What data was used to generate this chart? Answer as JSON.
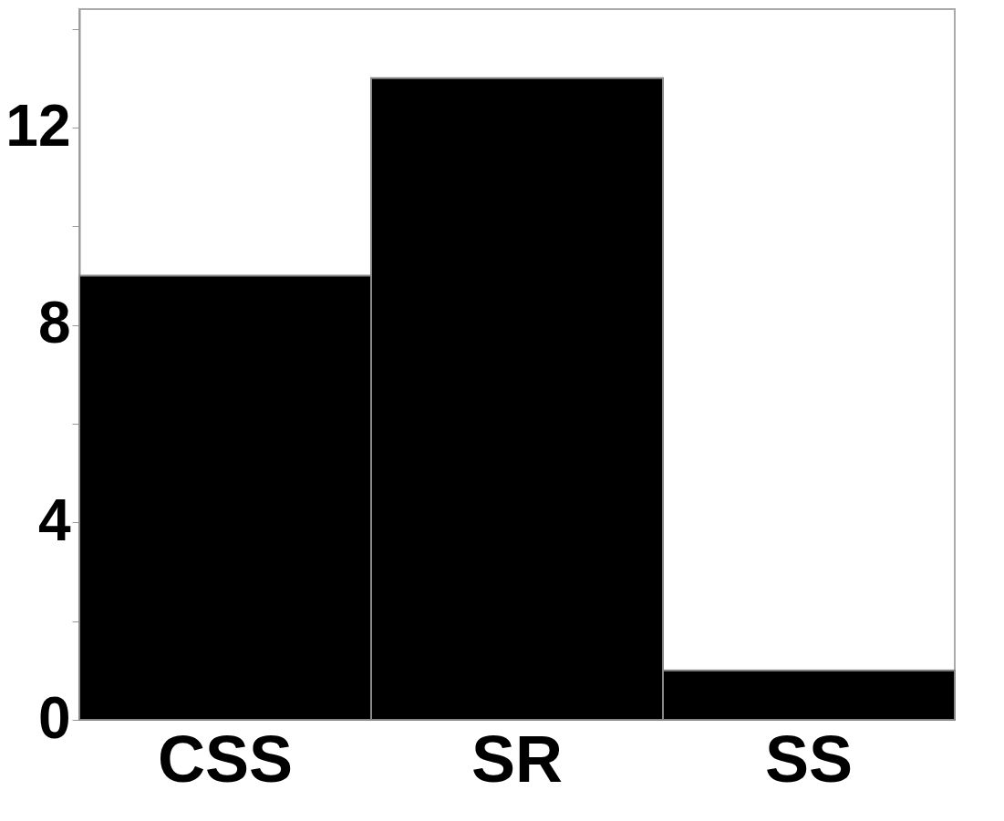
{
  "chart_data": {
    "type": "bar",
    "categories": [
      "CSS",
      "SR",
      "SS"
    ],
    "values": [
      9,
      13,
      1
    ],
    "color": "#000000",
    "ylim": [
      0,
      14.4
    ],
    "yticks": [
      0,
      {
        "value": 2,
        "label": null
      },
      4,
      {
        "value": 6,
        "label": null
      },
      8,
      {
        "value": 10,
        "label": null
      },
      12,
      {
        "value": 14,
        "label": null
      }
    ],
    "grid": false
  }
}
